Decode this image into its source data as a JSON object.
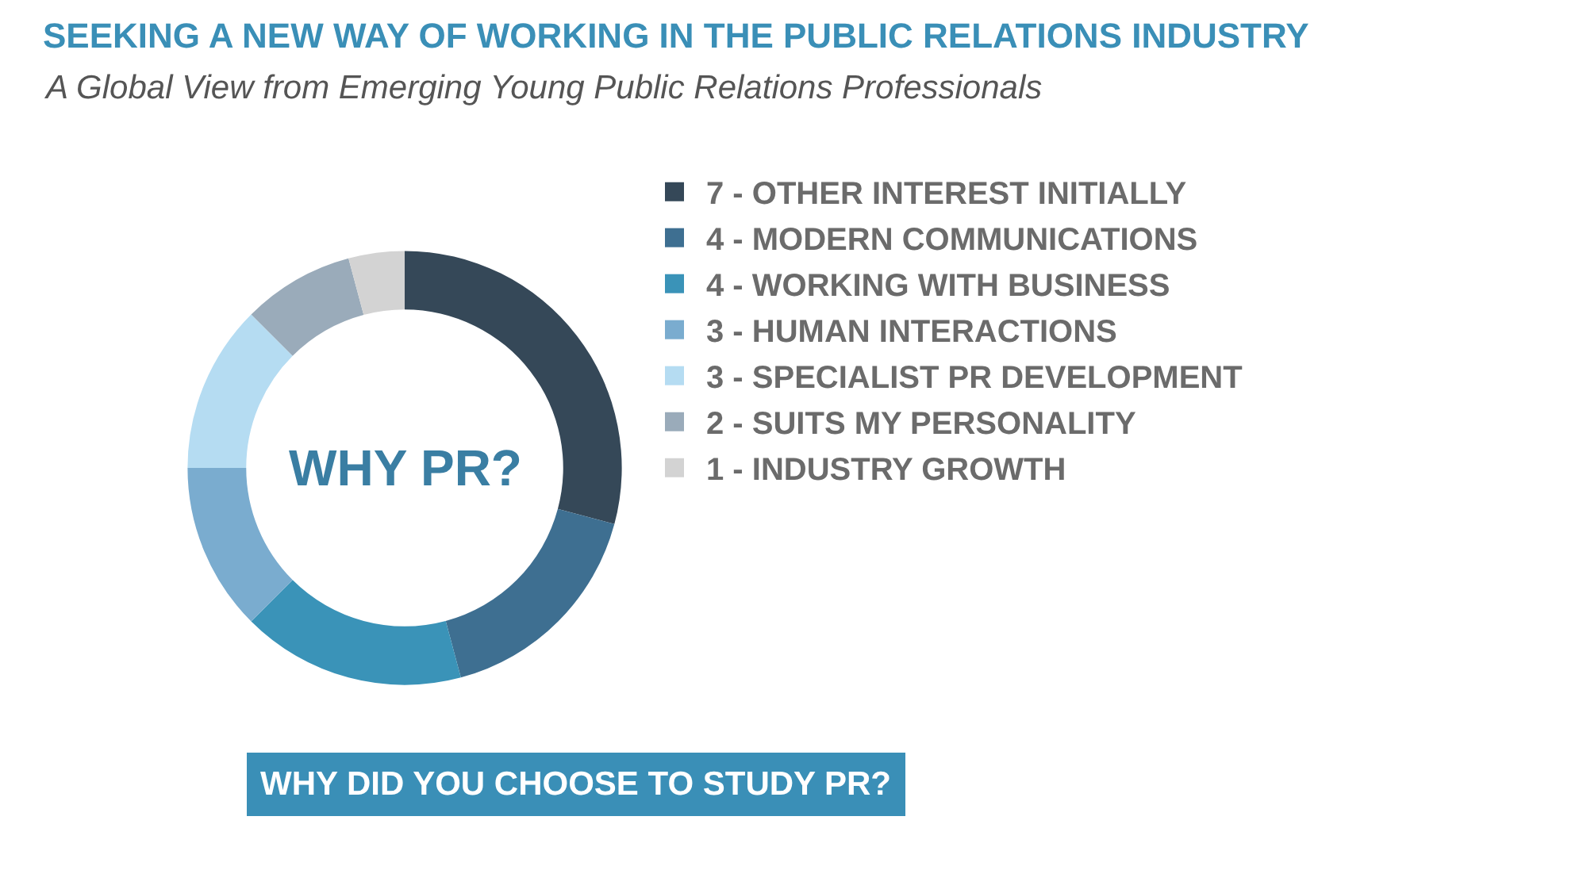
{
  "chart_data": {
    "type": "donut",
    "title": "SEEKING A NEW WAY OF WORKING IN THE PUBLIC RELATIONS INDUSTRY",
    "subtitle": "A Global View from Emerging Young Public Relations Professionals",
    "categories": [
      "7 - OTHER INTEREST INITIALLY",
      "4 - MODERN COMMUNICATIONS",
      "4 - WORKING WITH BUSINESS",
      "3 - HUMAN INTERACTIONS",
      "3 - SPECIALIST PR DEVELOPMENT",
      "2 - SUITS MY PERSONALITY",
      "1 - INDUSTRY GROWTH"
    ],
    "values": [
      7,
      4,
      4,
      3,
      3,
      2,
      1
    ],
    "colors": [
      "#354858",
      "#3e6f91",
      "#3a93b8",
      "#7aaccf",
      "#b5dcf2",
      "#9aabba",
      "#d3d3d3"
    ],
    "legend": "right",
    "annotations": [
      "WHY PR?",
      "WHY DID YOU CHOOSE TO STUDY PR?"
    ]
  }
}
